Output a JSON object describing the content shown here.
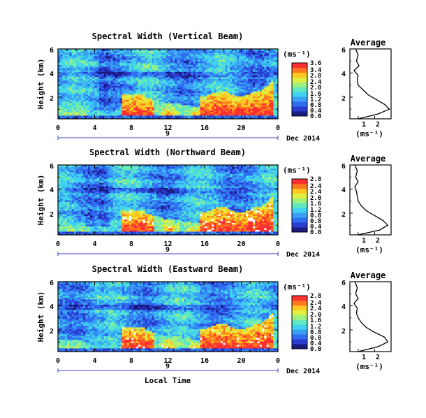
{
  "chart_data": {
    "type": "heatmap",
    "panels": [
      {
        "title": "Spectral Width (Vertical Beam)",
        "ylabel": "Height (km)",
        "xticks": [
          "0",
          "4",
          "8",
          "12",
          "16",
          "20",
          "0"
        ],
        "yticks": [
          "2",
          "4",
          "6"
        ],
        "day_label": "9",
        "date_label": "Dec 2014",
        "colorbar_unit": "(ms⁻¹)",
        "colorbar_ticks": [
          "3.6",
          "3.4",
          "2.8",
          "2.4",
          "2.0",
          "1.6",
          "1.2",
          "0.8",
          "0.4",
          "0.0"
        ],
        "vmax": 3.6,
        "x_range_hours": [
          0,
          24
        ],
        "y_range_km": [
          0.2,
          6
        ],
        "avg_title": "Average",
        "avg_xticks": [
          "1",
          "2"
        ],
        "avg_yticks": [
          "2",
          "4",
          "6"
        ],
        "avg_xlabel": "(ms⁻¹)",
        "average_profile": {
          "height_km": [
            0.2,
            0.6,
            1.0,
            1.4,
            1.8,
            2.2,
            2.6,
            3.0,
            3.4,
            3.8,
            4.2,
            4.6,
            5.0,
            5.5,
            6.0
          ],
          "width": [
            1.0,
            2.2,
            2.9,
            2.6,
            2.1,
            1.6,
            1.3,
            1.0,
            0.95,
            1.0,
            0.75,
            1.05,
            0.9,
            1.0,
            0.85
          ]
        }
      },
      {
        "title": "Spectral Width (Northward Beam)",
        "ylabel": "Height (km)",
        "xticks": [
          "0",
          "4",
          "8",
          "12",
          "16",
          "20",
          "0"
        ],
        "yticks": [
          "2",
          "4",
          "6"
        ],
        "day_label": "9",
        "date_label": "Dec 2014",
        "colorbar_unit": "(ms⁻¹)",
        "colorbar_ticks": [
          "2.8",
          "2.4",
          "2.4",
          "2.0",
          "1.6",
          "1.2",
          "0.8",
          "0.8",
          "0.4",
          "0.0"
        ],
        "vmax": 2.8,
        "x_range_hours": [
          0,
          24
        ],
        "y_range_km": [
          0.2,
          6
        ],
        "avg_title": "Average",
        "avg_xticks": [
          "1",
          "2"
        ],
        "avg_yticks": [
          "2",
          "4",
          "6"
        ],
        "avg_xlabel": "(ms⁻¹)",
        "average_profile": {
          "height_km": [
            0.2,
            0.6,
            1.0,
            1.4,
            1.8,
            2.2,
            2.6,
            3.0,
            3.4,
            3.8,
            4.2,
            4.6,
            5.0,
            5.5,
            6.0
          ],
          "width": [
            1.0,
            2.3,
            2.8,
            2.5,
            2.0,
            1.5,
            1.2,
            1.0,
            0.95,
            0.9,
            0.8,
            1.0,
            0.85,
            0.95,
            0.8
          ]
        }
      },
      {
        "title": "Spectral Width (Eastward Beam)",
        "ylabel": "Height (km)",
        "xticks": [
          "0",
          "4",
          "8",
          "12",
          "16",
          "20",
          "0"
        ],
        "yticks": [
          "2",
          "4",
          "6"
        ],
        "day_label": "9",
        "date_label": "Dec 2014",
        "colorbar_unit": "(ms⁻¹)",
        "colorbar_ticks": [
          "2.8",
          "2.4",
          "2.4",
          "2.0",
          "1.6",
          "1.2",
          "0.8",
          "0.8",
          "0.4",
          "0.0"
        ],
        "vmax": 2.8,
        "x_range_hours": [
          0,
          24
        ],
        "y_range_km": [
          0.2,
          6
        ],
        "avg_title": "Average",
        "avg_xticks": [
          "1",
          "2"
        ],
        "avg_yticks": [
          "2",
          "4",
          "6"
        ],
        "avg_xlabel": "(ms⁻¹)",
        "average_profile": {
          "height_km": [
            0.2,
            0.6,
            1.0,
            1.4,
            1.8,
            2.2,
            2.6,
            3.0,
            3.4,
            3.8,
            4.2,
            4.6,
            5.0,
            5.5,
            6.0
          ],
          "width": [
            1.0,
            2.2,
            2.8,
            2.6,
            2.0,
            1.5,
            1.2,
            1.0,
            0.9,
            0.95,
            0.75,
            1.0,
            0.85,
            0.95,
            0.8
          ]
        }
      }
    ],
    "xlabel": "Local Time"
  },
  "colors": {
    "scale": [
      "#1a1a80",
      "#2a3cd0",
      "#2f6ef0",
      "#3aa0f5",
      "#40d2f0",
      "#60e8c0",
      "#a0f080",
      "#e0f040",
      "#ffc820",
      "#ff7820",
      "#ff3030"
    ],
    "axis": "#000000",
    "date_bar": "#3c3cc8"
  }
}
